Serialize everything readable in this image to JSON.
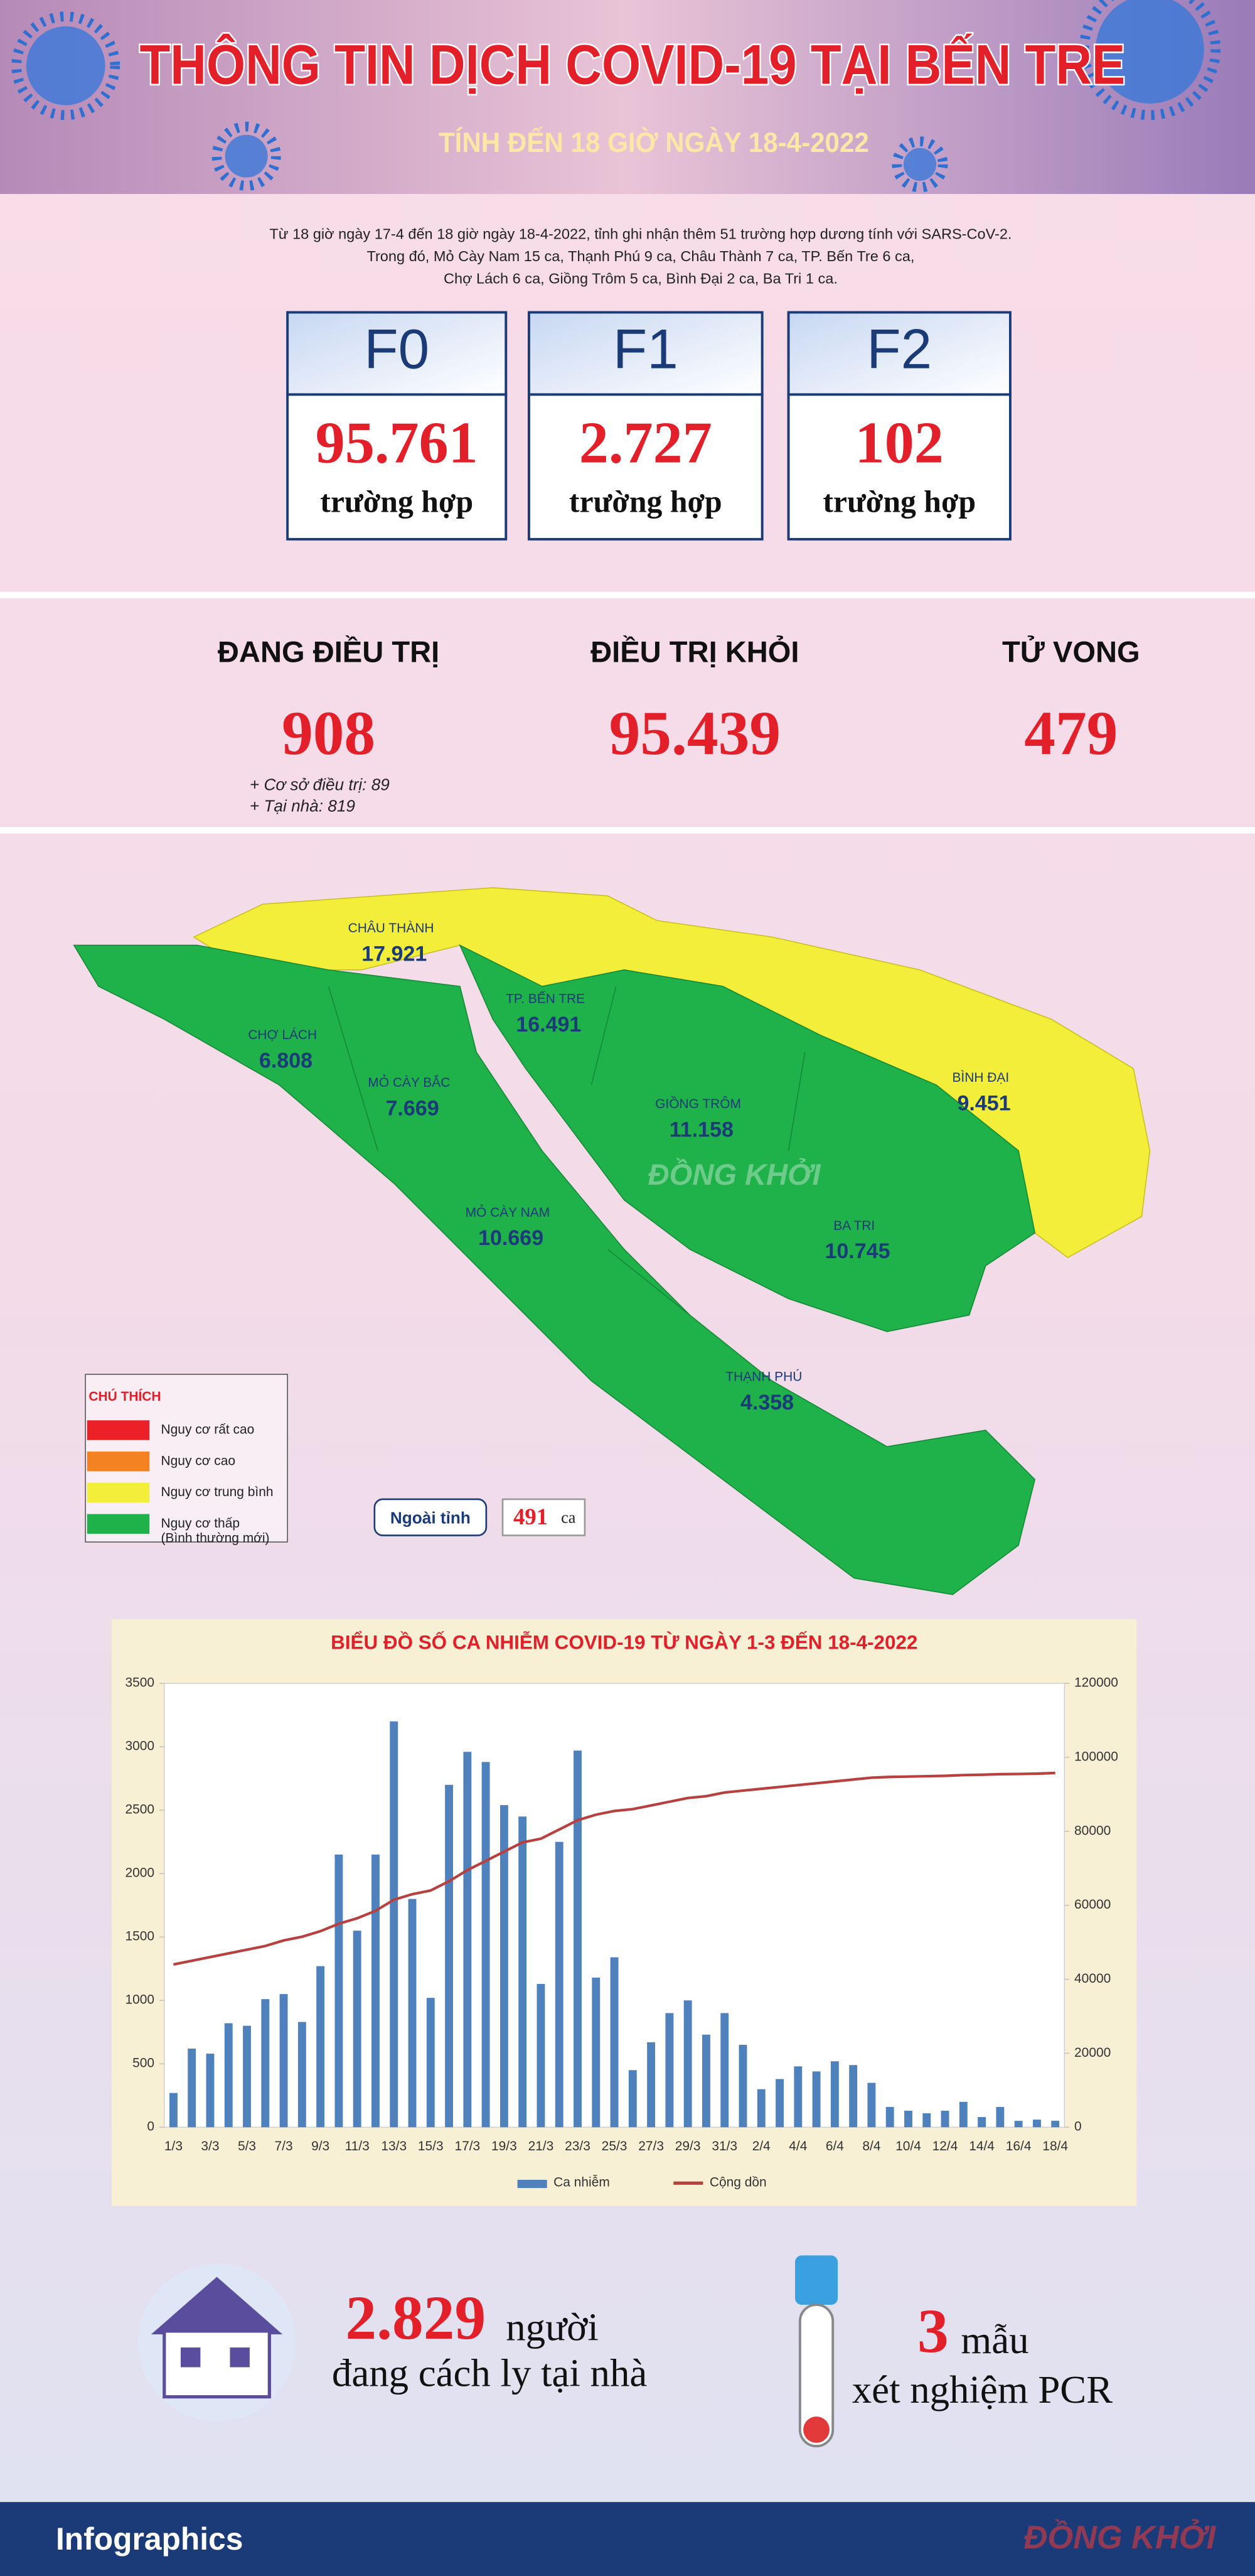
{
  "header": {
    "title": "THÔNG TIN DỊCH COVID-19 TẠI BẾN TRE",
    "subtitle": "TÍNH ĐẾN 18 GIỜ NGÀY 18-4-2022"
  },
  "summary": [
    "Từ 18 giờ ngày 17-4 đến 18 giờ ngày 18-4-2022, tỉnh ghi nhận thêm 51 trường hợp dương tính với SARS-CoV-2.",
    "Trong đó, Mỏ Cày Nam 15 ca, Thạnh Phú 9 ca, Châu Thành 7 ca, TP. Bến Tre 6 ca,",
    "Chợ Lách 6 ca, Giồng Trôm 5 ca, Bình Đại 2 ca, Ba Tri 1 ca."
  ],
  "cases": [
    {
      "label": "F0",
      "value": "95.761",
      "unit": "trường hợp"
    },
    {
      "label": "F1",
      "value": "2.727",
      "unit": "trường hợp"
    },
    {
      "label": "F2",
      "value": "102",
      "unit": "trường hợp"
    }
  ],
  "treatment": [
    {
      "label": "ĐANG ĐIỀU TRỊ",
      "value": "908",
      "details": [
        "+ Cơ sở điều trị: 89",
        "+ Tại nhà: 819"
      ]
    },
    {
      "label": "ĐIỀU TRỊ KHỎI",
      "value": "95.439"
    },
    {
      "label": "TỬ VONG",
      "value": "479"
    }
  ],
  "map": {
    "districts": [
      {
        "name": "CHÂU THÀNH",
        "value": "17.921",
        "color": "#f2ee3a"
      },
      {
        "name": "TP. BẾN TRE",
        "value": "16.491",
        "color": "#1fb14a"
      },
      {
        "name": "CHỢ LÁCH",
        "value": "6.808",
        "color": "#1fb14a"
      },
      {
        "name": "MỎ CÀY BẮC",
        "value": "7.669",
        "color": "#1fb14a"
      },
      {
        "name": "GIỒNG TRÔM",
        "value": "11.158",
        "color": "#1fb14a"
      },
      {
        "name": "BÌNH ĐẠI",
        "value": "9.451",
        "color": "#f2ee3a"
      },
      {
        "name": "MỎ CÀY NAM",
        "value": "10.669",
        "color": "#1fb14a"
      },
      {
        "name": "BA TRI",
        "value": "10.745",
        "color": "#1fb14a"
      },
      {
        "name": "THẠNH PHÚ",
        "value": "4.358",
        "color": "#1fb14a"
      }
    ],
    "watermark": "ĐỒNG KHỞI",
    "legend": {
      "title": "CHÚ THÍCH",
      "items": [
        {
          "lines": [
            "Nguy cơ rất cao"
          ],
          "color": "#ec2027"
        },
        {
          "lines": [
            "Nguy cơ cao"
          ],
          "color": "#f58220"
        },
        {
          "lines": [
            "Nguy cơ trung bình"
          ],
          "color": "#f2ee3a"
        },
        {
          "lines": [
            "Nguy cơ thấp",
            "(Bình thường mới)"
          ],
          "color": "#1fb14a"
        }
      ]
    },
    "outside": {
      "label": "Ngoài tỉnh",
      "value": "491",
      "unit": "ca"
    }
  },
  "chart_data": {
    "type": "bar",
    "title": "BIỂU ĐỒ SỐ CA NHIỄM COVID-19 TỪ NGÀY 1-3 ĐẾN 18-4-2022",
    "categories": [
      "1/3",
      null,
      "3/3",
      null,
      "5/3",
      null,
      "7/3",
      null,
      "9/3",
      null,
      "11/3",
      null,
      "13/3",
      null,
      "15/3",
      null,
      "17/3",
      null,
      "19/3",
      null,
      "21/3",
      null,
      "23/3",
      null,
      "25/3",
      null,
      "27/3",
      null,
      "29/3",
      null,
      "31/3",
      null,
      "2/4",
      null,
      "4/4",
      null,
      "6/4",
      null,
      "8/4",
      null,
      "10/4",
      null,
      "12/4",
      null,
      "14/4",
      null,
      "16/4",
      null,
      "18/4"
    ],
    "series": [
      {
        "name": "Ca nhiễm",
        "color": "#4f81bd",
        "values": [
          270,
          620,
          580,
          820,
          800,
          1010,
          1050,
          830,
          1270,
          2150,
          1550,
          2150,
          3200,
          1800,
          1020,
          2700,
          2960,
          2880,
          2540,
          2450,
          1130,
          2250,
          2970,
          1180,
          1340,
          450,
          670,
          900,
          1000,
          730,
          900,
          650,
          300,
          380,
          480,
          440,
          520,
          490,
          350,
          160,
          130,
          110,
          130,
          200,
          80,
          160,
          50,
          60,
          51
        ]
      },
      {
        "name": "Cộng dồn",
        "color": "#b8413f",
        "type": "line",
        "axis": "y2",
        "values": [
          44000,
          45000,
          46000,
          47000,
          48000,
          49000,
          50500,
          51500,
          53000,
          55000,
          56500,
          58500,
          61500,
          63000,
          64000,
          66500,
          69500,
          72000,
          74500,
          77000,
          78000,
          80500,
          83000,
          84500,
          85500,
          86000,
          87000,
          88000,
          89000,
          89500,
          90500,
          91000,
          91500,
          92000,
          92500,
          93000,
          93500,
          94000,
          94500,
          94700,
          94800,
          94900,
          95000,
          95200,
          95300,
          95450,
          95500,
          95600,
          95761
        ]
      }
    ],
    "ylim": [
      0,
      3500
    ],
    "yticks": [
      0,
      500,
      1000,
      1500,
      2000,
      2500,
      3000,
      3500
    ],
    "y2lim": [
      0,
      120000
    ],
    "y2ticks": [
      0,
      20000,
      40000,
      60000,
      80000,
      100000,
      120000
    ],
    "grid": false,
    "legend": "bottom"
  },
  "isolation": {
    "value": "2.829",
    "unit": "người",
    "text": "đang cách ly tại nhà"
  },
  "pcr": {
    "value": "3",
    "unit": "mẫu",
    "text": "xét nghiệm PCR"
  },
  "footer": {
    "label": "Infographics",
    "brand": "ĐỒNG KHỞI"
  }
}
